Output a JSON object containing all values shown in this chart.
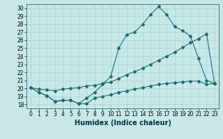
{
  "xlabel": "Humidex (Indice chaleur)",
  "bg_color": "#c8e8e8",
  "line_color": "#1a6b6b",
  "grid_color": "#9ecece",
  "xlim": [
    -0.5,
    23.5
  ],
  "ylim": [
    17.5,
    30.5
  ],
  "yticks": [
    18,
    19,
    20,
    21,
    22,
    23,
    24,
    25,
    26,
    27,
    28,
    29,
    30
  ],
  "xticks": [
    0,
    1,
    2,
    3,
    4,
    5,
    6,
    7,
    8,
    9,
    10,
    11,
    12,
    13,
    14,
    15,
    16,
    17,
    18,
    19,
    20,
    21,
    22,
    23
  ],
  "line1_x": [
    0,
    1,
    2,
    3,
    4,
    5,
    6,
    7,
    8,
    9,
    10,
    11,
    12,
    13,
    14,
    15,
    16,
    17,
    18,
    19,
    20,
    21,
    22,
    23
  ],
  "line1_y": [
    20.1,
    19.5,
    19.1,
    18.4,
    18.5,
    18.5,
    18.1,
    18.1,
    18.8,
    19.0,
    19.2,
    19.5,
    19.7,
    19.9,
    20.1,
    20.3,
    20.5,
    20.6,
    20.7,
    20.8,
    20.9,
    20.9,
    20.5,
    20.6
  ],
  "line2_x": [
    0,
    1,
    2,
    3,
    4,
    5,
    6,
    7,
    8,
    9,
    10,
    11,
    12,
    13,
    14,
    15,
    16,
    17,
    18,
    19,
    20,
    21,
    22,
    23
  ],
  "line2_y": [
    20.1,
    19.5,
    19.1,
    18.4,
    18.5,
    18.5,
    18.1,
    18.8,
    19.5,
    20.5,
    21.5,
    25.0,
    26.7,
    27.0,
    28.0,
    29.2,
    30.2,
    29.2,
    27.7,
    27.2,
    26.5,
    23.7,
    21.0,
    20.6
  ],
  "line3_x": [
    0,
    1,
    2,
    3,
    4,
    5,
    6,
    7,
    8,
    9,
    10,
    11,
    12,
    13,
    14,
    15,
    16,
    17,
    18,
    19,
    20,
    21,
    22,
    23
  ],
  "line3_y": [
    20.1,
    19.9,
    19.8,
    19.7,
    19.9,
    20.0,
    20.1,
    20.3,
    20.4,
    20.6,
    20.8,
    21.2,
    21.7,
    22.1,
    22.5,
    23.0,
    23.5,
    24.0,
    24.5,
    25.1,
    25.7,
    26.2,
    26.8,
    20.6
  ],
  "marker": "D",
  "markersize": 2.0,
  "linewidth": 0.8,
  "xlabel_fontsize": 7,
  "tick_fontsize": 5.5
}
